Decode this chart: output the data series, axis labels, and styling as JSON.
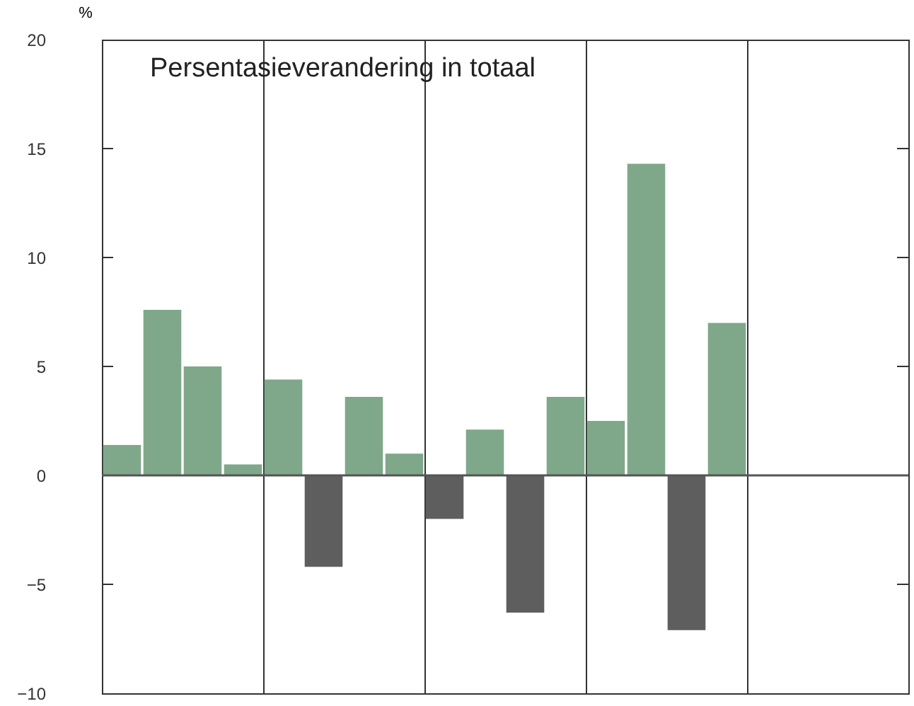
{
  "chart_data": {
    "type": "bar",
    "title": "Persentasieverandering in totaal",
    "ylabel": "%",
    "categories": [
      null,
      null,
      null,
      null,
      null,
      null,
      null,
      null,
      null,
      null,
      null,
      null,
      null,
      null,
      null,
      null,
      null,
      null,
      null,
      null
    ],
    "values": [
      1.4,
      7.6,
      5.0,
      0.5,
      4.4,
      -4.2,
      3.6,
      1.0,
      -2.0,
      2.1,
      -6.3,
      3.6,
      2.5,
      14.3,
      -7.1,
      7.0,
      null,
      null,
      null,
      null
    ],
    "colors": [
      "#7fa88a",
      "#7fa88a",
      "#7fa88a",
      "#7fa88a",
      "#7fa88a",
      "#5e5e5e",
      "#7fa88a",
      "#7fa88a",
      "#5e5e5e",
      "#7fa88a",
      "#5e5e5e",
      "#7fa88a",
      "#7fa88a",
      "#7fa88a",
      "#5e5e5e",
      "#7fa88a",
      "#7fa88a",
      "#7fa88a",
      "#7fa88a",
      "#7fa88a"
    ],
    "ylim": [
      -10,
      20
    ],
    "yticks": [
      -10,
      -5,
      0,
      5,
      10,
      15,
      20
    ],
    "ref_lines": [
      {
        "axis": "y",
        "value": 0,
        "color": "#555555"
      }
    ],
    "grid": "x",
    "tick_labels": "y"
  }
}
